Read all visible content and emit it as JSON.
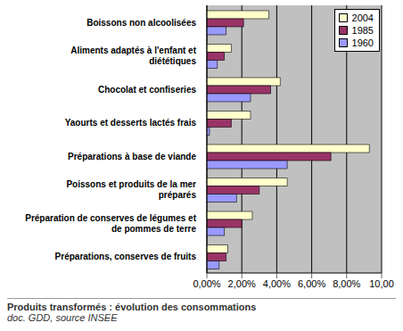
{
  "chart_data": {
    "type": "bar",
    "orientation": "horizontal",
    "title": "Produits transformés : évolution des consommations",
    "subtitle": "doc. GDD, source INSEE",
    "categories": [
      "Boissons non alcoolisées",
      "Aliments adaptés à l'enfant et diététiques",
      "Chocolat et confiseries",
      "Yaourts et desserts lactés frais",
      "Préparations à base de viande",
      "Poissons et produits de la mer préparés",
      "Préparation de conserves de légumes et de pommes de terre",
      "Préparations, conserves de fruits"
    ],
    "series": [
      {
        "name": "2004",
        "color": "#FFFFCC",
        "values": [
          3.55,
          1.4,
          4.2,
          2.5,
          9.3,
          4.6,
          2.6,
          1.2
        ]
      },
      {
        "name": "1985",
        "color": "#993366",
        "values": [
          2.1,
          1.0,
          3.65,
          1.4,
          7.1,
          3.0,
          2.0,
          1.1
        ]
      },
      {
        "name": "1960",
        "color": "#9999FF",
        "values": [
          1.1,
          0.6,
          2.5,
          0.15,
          4.6,
          1.7,
          1.0,
          0.7
        ]
      }
    ],
    "xlim": [
      0,
      10
    ],
    "xticks": [
      {
        "value": 0,
        "label": "0,00%"
      },
      {
        "value": 2,
        "label": "2,00%"
      },
      {
        "value": 4,
        "label": "4,00%"
      },
      {
        "value": 6,
        "label": "6,00%"
      },
      {
        "value": 8,
        "label": "8,00%"
      },
      {
        "value": 10,
        "label": "10,00"
      }
    ],
    "grid": true,
    "legend": "top-right"
  }
}
